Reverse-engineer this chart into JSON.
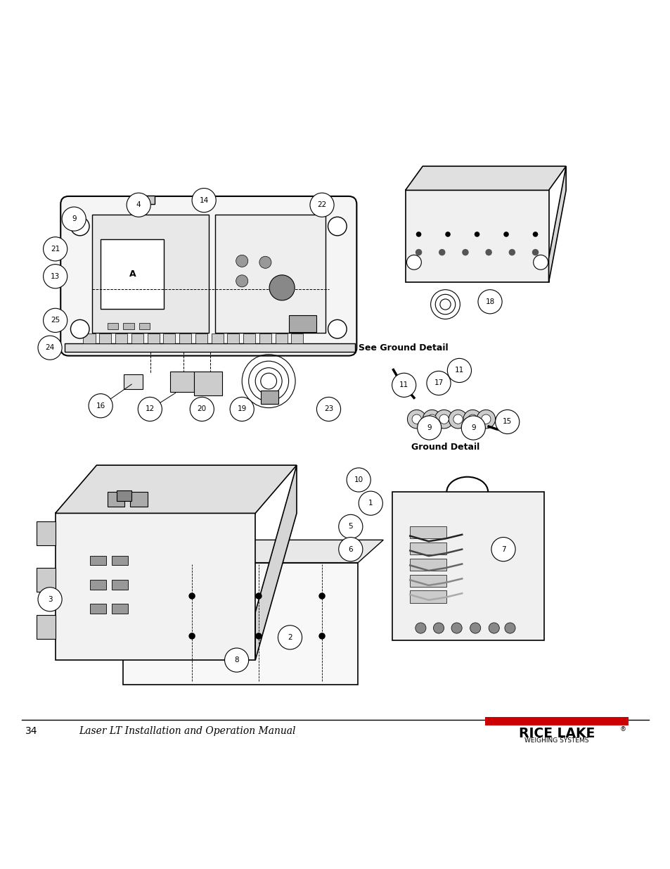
{
  "page_number": "34",
  "footer_text": "Laser LT Installation and Operation Manual",
  "background_color": "#ffffff",
  "line_color": "#000000",
  "logo_red": "#cc0000",
  "logo_text_main": "RICE LAKE",
  "logo_text_sub": "WEIGHING SYSTEMS",
  "see_ground_detail_text": "See Ground Detail",
  "ground_detail_text": "Ground Detail",
  "figsize": [
    9.54,
    12.35
  ],
  "dpi": 100
}
